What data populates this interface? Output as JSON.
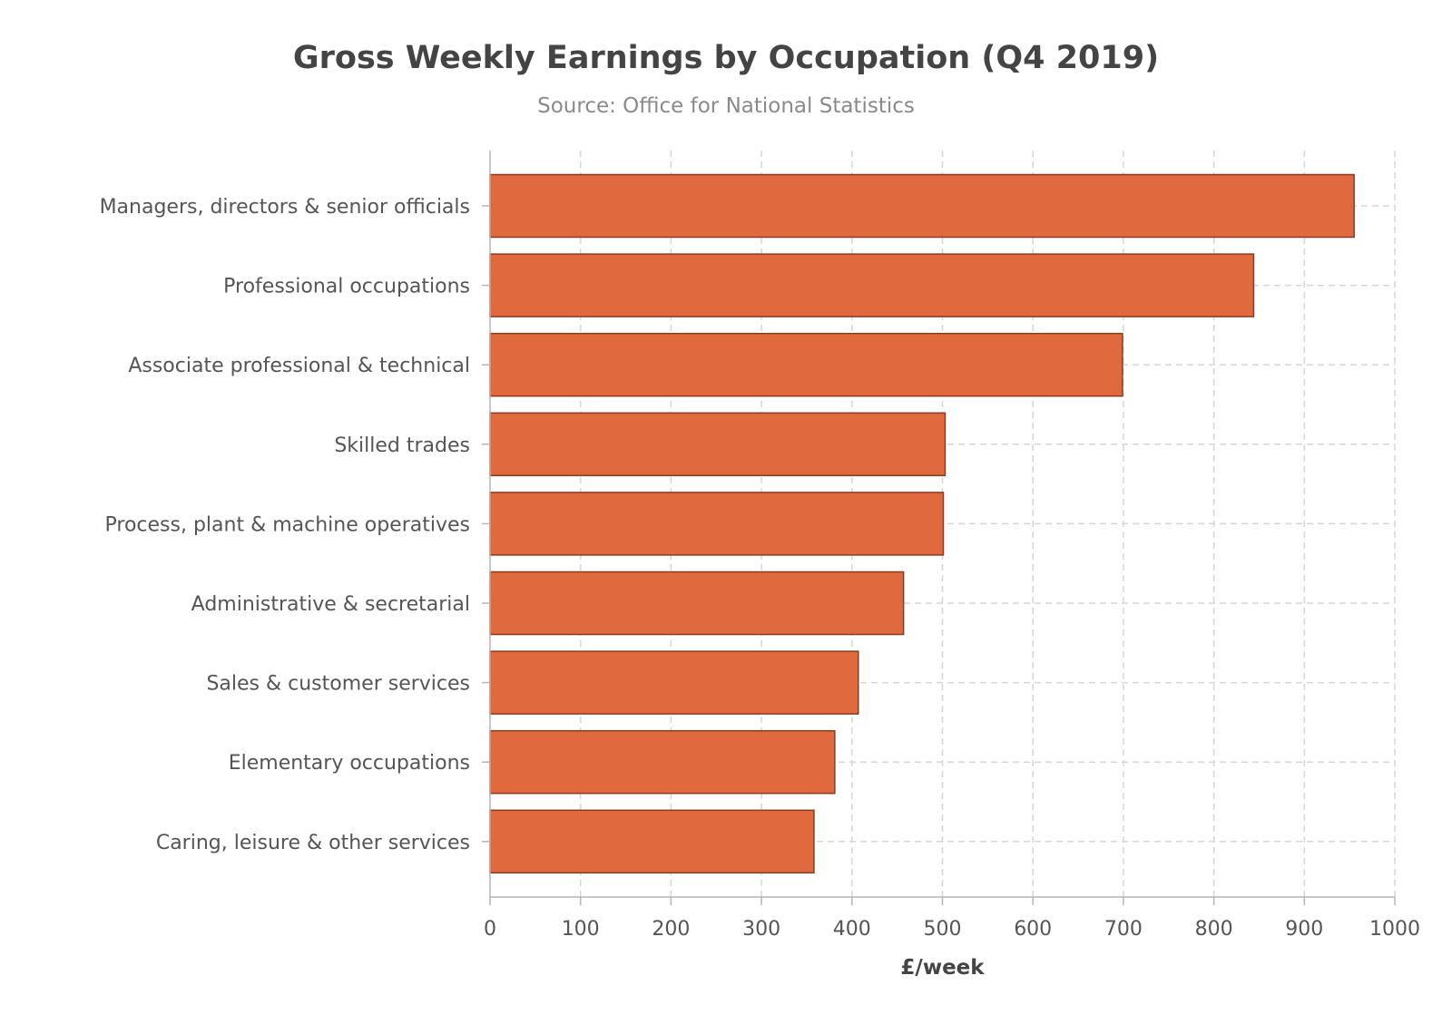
{
  "chart_data": {
    "type": "bar",
    "orientation": "horizontal",
    "title": "Gross Weekly Earnings by Occupation (Q4 2019)",
    "subtitle": "Source: Office for National Statistics",
    "xlabel": "£/week",
    "ylabel": "",
    "xlim": [
      0,
      1000
    ],
    "xticks": [
      0,
      100,
      200,
      300,
      400,
      500,
      600,
      700,
      800,
      900,
      1000
    ],
    "grid": true,
    "categories": [
      "Managers, directors & senior officials",
      "Professional occupations",
      "Associate professional & technical",
      "Skilled trades",
      "Process, plant & machine operatives",
      "Administrative & secretarial",
      "Sales & customer services",
      "Elementary occupations",
      "Caring, leisure & other services"
    ],
    "values": [
      955,
      844,
      699,
      503,
      501,
      457,
      407,
      381,
      358
    ],
    "bar_color": "#e0693e",
    "bar_edge_color": "#8e3a1c"
  }
}
